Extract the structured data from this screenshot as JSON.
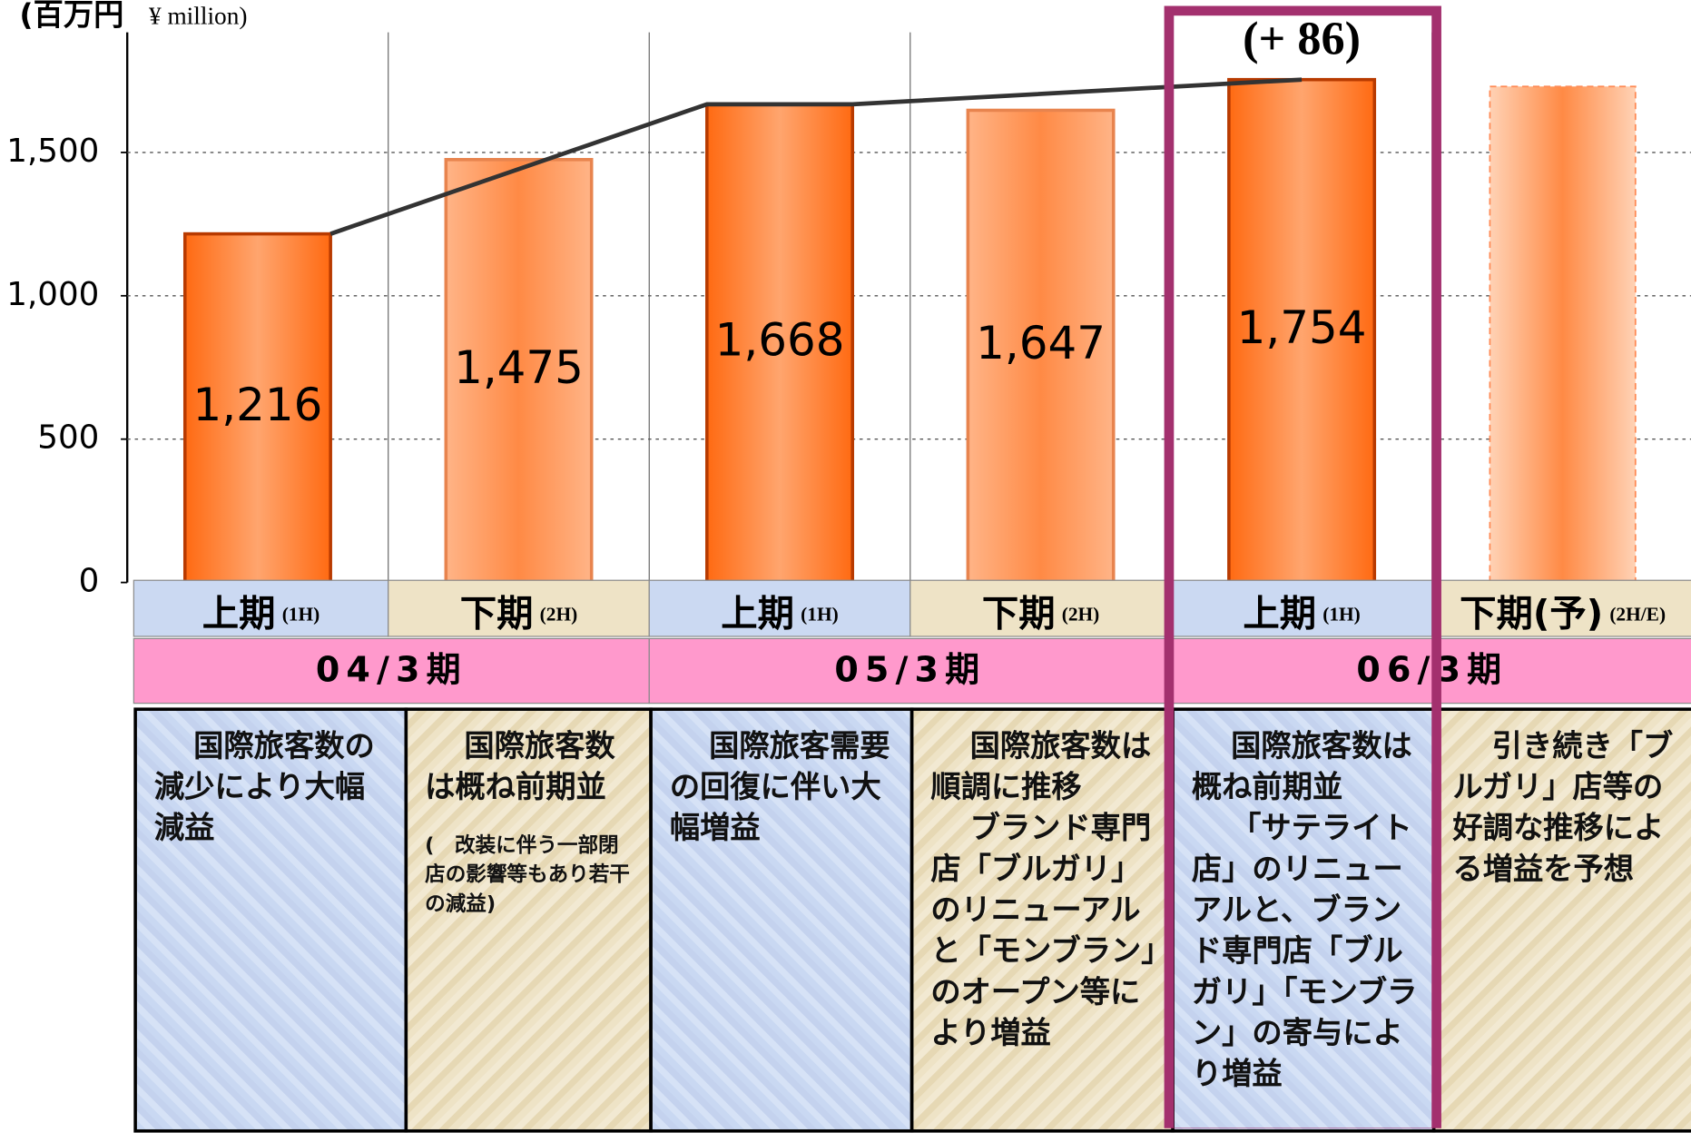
{
  "chart_data": {
    "type": "bar",
    "unit_label": {
      "ja": "(百万円",
      "en": "¥ million)"
    },
    "annotation": "(+ 86)",
    "categories": [
      "上期",
      "下期",
      "上期",
      "下期",
      "上期",
      "下期(予)"
    ],
    "category_sublabels": [
      "(1H)",
      "(2H)",
      "(1H)",
      "(2H)",
      "(1H)",
      "(2H/E)"
    ],
    "periods": [
      "04/3期",
      "05/3期",
      "06/3期"
    ],
    "values": [
      1216,
      1475,
      1668,
      1647,
      1754,
      1730
    ],
    "value_labels": [
      "1,216",
      "1,475",
      "1,668",
      "1,647",
      "1,754",
      null
    ],
    "colors": [
      "#ff6a12",
      "#ffb487",
      "#ff6a12",
      "#ffb487",
      "#ff6a12",
      "#ffd2b5"
    ],
    "center_colors": [
      "#ffa56e",
      "#ff8a45",
      "#ffa56e",
      "#ff8a45",
      "#ffa56e",
      "#ff8a45"
    ],
    "border_colors": [
      "#b83a00",
      "#e8844e",
      "#b83a00",
      "#e8844e",
      "#b83a00",
      "#ff8a55"
    ],
    "dashed": [
      false,
      false,
      false,
      false,
      false,
      true
    ],
    "trend_line_color": "#333333",
    "highlight_color": "#a3306e",
    "highlight_index": 4,
    "ylim": [
      0,
      1900
    ],
    "yticks": [
      0,
      500,
      {
        "value": 1000,
        "label": "1,000"
      },
      {
        "value": 1500,
        "label": "1,500"
      }
    ],
    "grid": true
  },
  "descriptions": [
    {
      "paragraphs": [
        "国際旅客数の減少により大幅減益"
      ]
    },
    {
      "paragraphs": [
        "国際旅客数は概ね前期並"
      ],
      "note": "(　改装に伴う一部閉店の影響等もあり若干の減益)"
    },
    {
      "paragraphs": [
        "国際旅客需要の回復に伴い大幅増益"
      ]
    },
    {
      "paragraphs": [
        "国際旅客数は順調に推移",
        "ブランド専門店「ブルガリ」のリニューアルと「モンブラン」のオープン等により増益"
      ]
    },
    {
      "paragraphs": [
        "国際旅客数は概ね前期並",
        "「サテライト店」のリニューアルと、ブランド専門店「ブルガリ」「モンブラン」の寄与により増益"
      ]
    },
    {
      "paragraphs": [
        "引き続き「ブルガリ」店等の好調な推移による増益を予想"
      ]
    }
  ]
}
